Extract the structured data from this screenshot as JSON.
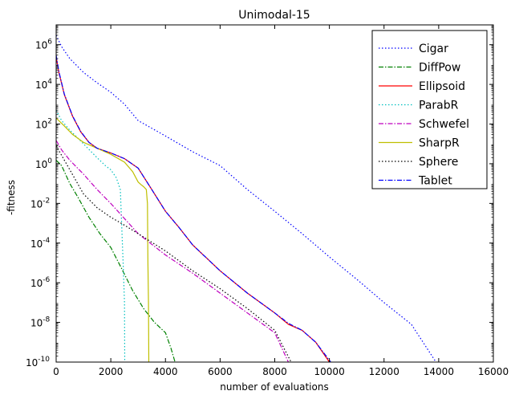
{
  "chart_data": {
    "type": "line",
    "title": "Unimodal-15",
    "xlabel": "number of evaluations",
    "ylabel": "-fitness",
    "xlim": [
      0,
      16000
    ],
    "ylim_log10": [
      -10,
      7
    ],
    "y_scale": "log",
    "x_ticks": [
      0,
      2000,
      4000,
      6000,
      8000,
      10000,
      12000,
      14000,
      16000
    ],
    "x_tick_labels": [
      "0",
      "2000",
      "4000",
      "6000",
      "8000",
      "10000",
      "12000",
      "14000",
      "16000"
    ],
    "y_tick_exponents": [
      -10,
      -8,
      -6,
      -4,
      -2,
      0,
      2,
      4,
      6
    ],
    "y_tick_base": "10",
    "grid": false,
    "legend_position": "top-right",
    "series": [
      {
        "name": "Cigar",
        "color": "#0000ff",
        "dash": "1.5,2.5",
        "x": [
          0,
          200,
          500,
          1000,
          1500,
          2000,
          2500,
          3000,
          4000,
          5000,
          6000,
          7000,
          8000,
          9000,
          10000,
          11000,
          12000,
          13000,
          13900
        ],
        "y": [
          3000000,
          800000,
          200000,
          40000,
          12000,
          4000,
          1000,
          150,
          25,
          4,
          0.8,
          0.05,
          0.004,
          0.0003,
          2e-05,
          1.5e-06,
          1e-07,
          8e-09,
          1e-10
        ]
      },
      {
        "name": "DiffPow",
        "color": "#008000",
        "dash": "6,2,1.5,2",
        "x": [
          0,
          200,
          500,
          800,
          1200,
          1600,
          2000,
          2400,
          2800,
          3200,
          3600,
          4000,
          4200,
          4350
        ],
        "y": [
          1.5,
          0.8,
          0.1,
          0.02,
          0.002,
          0.0003,
          6e-05,
          5e-06,
          4e-07,
          5e-08,
          1e-08,
          3e-09,
          5e-10,
          1e-10
        ]
      },
      {
        "name": "Ellipsoid",
        "color": "#ff0000",
        "dash": "",
        "x": [
          0,
          100,
          300,
          600,
          900,
          1200,
          1500,
          2000,
          2500,
          3000,
          3500,
          4000,
          4500,
          5000,
          6000,
          7000,
          8000,
          8500,
          9000,
          9500,
          10000
        ],
        "y": [
          250000,
          40000,
          3000,
          250,
          40,
          12,
          6,
          3.5,
          1.8,
          0.6,
          0.05,
          0.004,
          0.0006,
          8e-05,
          4e-06,
          3e-07,
          3e-08,
          8e-09,
          4e-09,
          1e-09,
          1e-10
        ]
      },
      {
        "name": "ParabR",
        "color": "#00bfbf",
        "dash": "1.5,2.5",
        "x": [
          0,
          200,
          500,
          1000,
          1500,
          1800,
          2000,
          2200,
          2350,
          2450,
          2500,
          2510
        ],
        "y": [
          500,
          150,
          50,
          10,
          2,
          0.8,
          0.5,
          0.2,
          0.05,
          1e-05,
          1e-07,
          1e-10
        ]
      },
      {
        "name": "Schwefel",
        "color": "#bf00bf",
        "dash": "6,2,1.5,2",
        "x": [
          0,
          200,
          500,
          1000,
          1500,
          2000,
          3000,
          4000,
          5000,
          6000,
          7000,
          8000,
          8500
        ],
        "y": [
          15,
          5,
          1.5,
          0.3,
          0.05,
          0.01,
          0.0003,
          2.5e-05,
          3e-06,
          3e-07,
          3e-08,
          3e-09,
          1e-10
        ]
      },
      {
        "name": "SharpR",
        "color": "#bfbf00",
        "dash": "",
        "x": [
          0,
          300,
          600,
          1000,
          1500,
          2000,
          2500,
          2800,
          3000,
          3100,
          3200,
          3300,
          3340,
          3360,
          3380,
          3390
        ],
        "y": [
          200,
          80,
          30,
          12,
          6,
          3,
          1.2,
          0.4,
          0.12,
          0.09,
          0.07,
          0.05,
          0.01,
          1e-05,
          1e-07,
          1e-10
        ]
      },
      {
        "name": "Sphere",
        "color": "#000000",
        "dash": "1.5,2.5",
        "x": [
          0,
          500,
          1000,
          1500,
          2000,
          2500,
          3000,
          4000,
          5000,
          6000,
          7000,
          8000,
          8600
        ],
        "y": [
          8,
          0.5,
          0.03,
          0.006,
          0.002,
          0.0008,
          0.0003,
          4e-05,
          4e-06,
          5e-07,
          5e-08,
          4e-09,
          1e-10
        ]
      },
      {
        "name": "Tablet",
        "color": "#0000ff",
        "dash": "6,2,1.5,2",
        "x": [
          0,
          100,
          300,
          600,
          900,
          1200,
          1500,
          2000,
          2500,
          3000,
          3500,
          4000,
          4500,
          5000,
          6000,
          7000,
          8000,
          8500,
          9000,
          9500,
          10050
        ],
        "y": [
          300000,
          45000,
          3200,
          260,
          42,
          12,
          6,
          3.5,
          1.8,
          0.6,
          0.05,
          0.004,
          0.0006,
          8e-05,
          4e-06,
          3e-07,
          3e-08,
          9e-09,
          4e-09,
          1e-09,
          1e-10
        ]
      }
    ]
  }
}
